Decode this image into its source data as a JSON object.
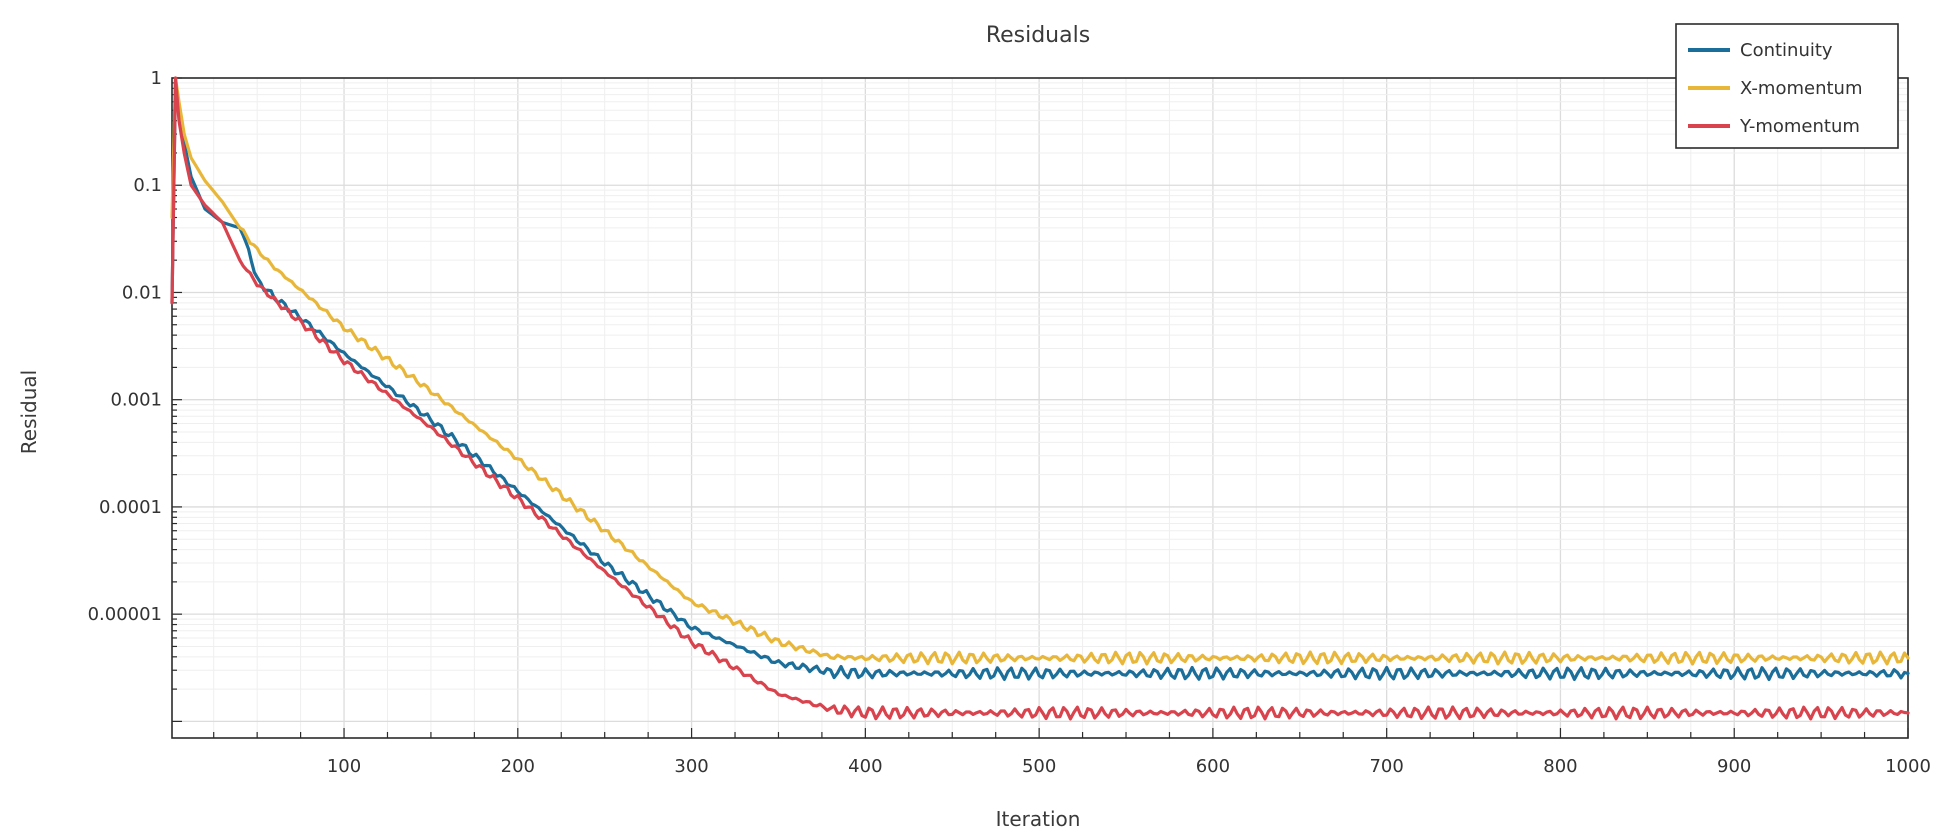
{
  "chart_data": {
    "type": "line",
    "title": "Residuals",
    "xlabel": "Iteration",
    "ylabel": "Residual",
    "y_scale": "log",
    "xlim": [
      1,
      1000
    ],
    "ylim": [
      7e-07,
      1
    ],
    "x_ticks": [
      100,
      200,
      300,
      400,
      500,
      600,
      700,
      800,
      900,
      1000
    ],
    "x_tick_labels": [
      "100",
      "200",
      "300",
      "400",
      "500",
      "600",
      "700",
      "800",
      "900",
      "1000"
    ],
    "y_ticks": [
      1,
      0.1,
      0.01,
      0.001,
      0.0001,
      1e-05
    ],
    "y_tick_labels": [
      "1",
      "0.1",
      "0.01",
      "0.001",
      "0.0001",
      "0.00001"
    ],
    "grid": true,
    "legend_position": "top-right",
    "series": [
      {
        "name": "Continuity",
        "color": "#1a6e99",
        "x": [
          1,
          3,
          5,
          8,
          12,
          20,
          30,
          40,
          45,
          50,
          60,
          80,
          100,
          150,
          200,
          250,
          300,
          350,
          380,
          400,
          500,
          600,
          700,
          800,
          900,
          1000
        ],
        "y": [
          0.008,
          0.9,
          0.5,
          0.25,
          0.12,
          0.06,
          0.045,
          0.04,
          0.025,
          0.013,
          0.009,
          0.005,
          0.0027,
          0.00065,
          0.00014,
          3e-05,
          7.5e-06,
          3.5e-06,
          2.9e-06,
          2.8e-06,
          2.8e-06,
          2.8e-06,
          2.8e-06,
          2.8e-06,
          2.8e-06,
          2.8e-06
        ]
      },
      {
        "name": "X-momentum",
        "color": "#e8b73a",
        "x": [
          1,
          3,
          5,
          8,
          12,
          20,
          30,
          40,
          50,
          60,
          80,
          100,
          150,
          200,
          250,
          300,
          350,
          380,
          400,
          500,
          600,
          700,
          800,
          900,
          1000
        ],
        "y": [
          0.05,
          1.0,
          0.6,
          0.3,
          0.18,
          0.11,
          0.07,
          0.04,
          0.025,
          0.017,
          0.009,
          0.0047,
          0.0012,
          0.00028,
          6e-05,
          1.3e-05,
          5.5e-06,
          4e-06,
          3.9e-06,
          3.9e-06,
          3.9e-06,
          3.9e-06,
          3.9e-06,
          3.9e-06,
          3.9e-06
        ]
      },
      {
        "name": "Y-momentum",
        "color": "#d9434d",
        "x": [
          1,
          3,
          5,
          8,
          12,
          20,
          30,
          40,
          50,
          60,
          80,
          100,
          150,
          200,
          250,
          300,
          350,
          380,
          400,
          420,
          500,
          600,
          700,
          800,
          900,
          1000
        ],
        "y": [
          0.008,
          1.0,
          0.4,
          0.2,
          0.1,
          0.065,
          0.045,
          0.02,
          0.012,
          0.0085,
          0.0045,
          0.0023,
          0.00055,
          0.00012,
          2.5e-05,
          5.5e-06,
          1.8e-06,
          1.3e-06,
          1.2e-06,
          1.2e-06,
          1.2e-06,
          1.2e-06,
          1.2e-06,
          1.2e-06,
          1.2e-06,
          1.2e-06
        ]
      }
    ]
  }
}
